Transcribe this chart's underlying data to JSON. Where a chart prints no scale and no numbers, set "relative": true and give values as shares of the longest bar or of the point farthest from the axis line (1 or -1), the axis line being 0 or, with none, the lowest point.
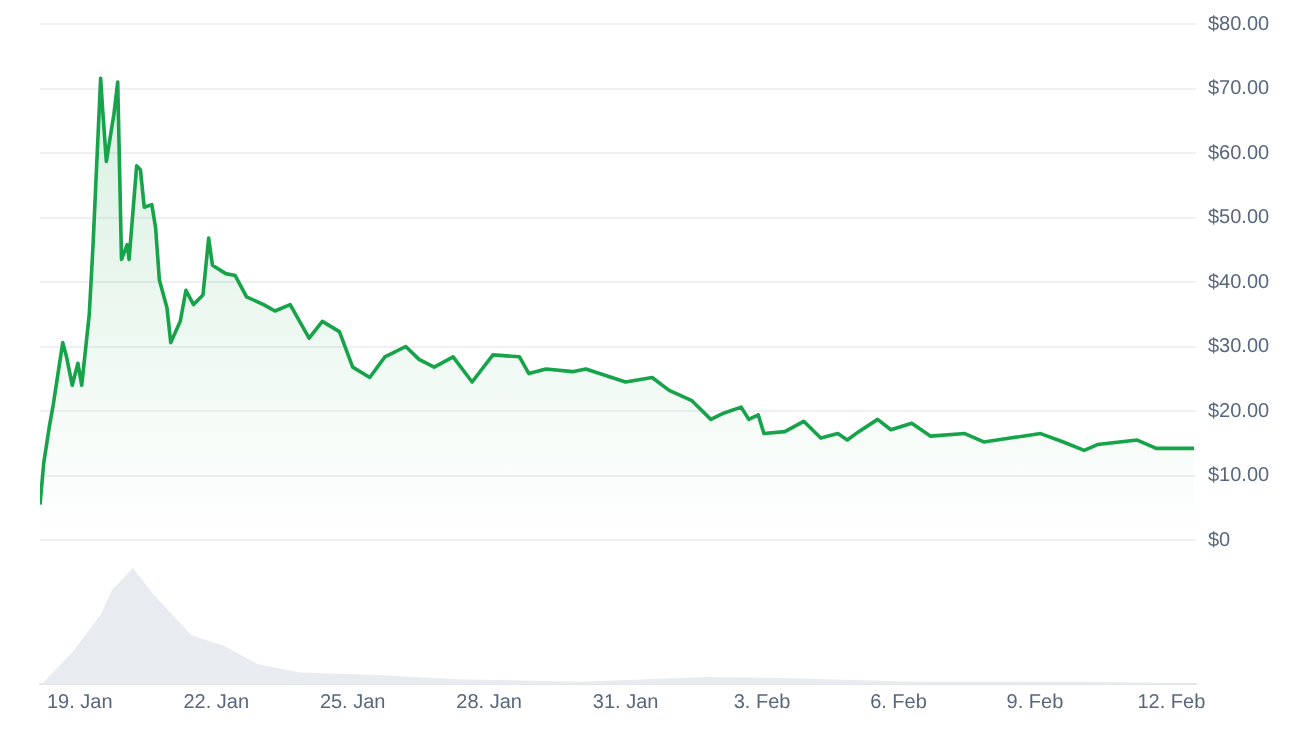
{
  "chart_data": [
    {
      "type": "area",
      "legend": false,
      "grid": "y",
      "tick_labels": "y",
      "xlim": [
        "--01-18T03:00",
        "--02-12T13:00"
      ],
      "ylim": [
        0,
        80
      ],
      "yticks": [
        {
          "value": 0,
          "label": "$0"
        },
        {
          "value": 10,
          "label": "$10.00"
        },
        {
          "value": 20,
          "label": "$20.00"
        },
        {
          "value": 30,
          "label": "$30.00"
        },
        {
          "value": 40,
          "label": "$40.00"
        },
        {
          "value": 50,
          "label": "$50.00"
        },
        {
          "value": 60,
          "label": "$60.00"
        },
        {
          "value": 70,
          "label": "$70.00"
        },
        {
          "value": 80,
          "label": "$80.00"
        }
      ],
      "series": [
        {
          "color": "#16a34a",
          "x": [
            "--01-18T03:00",
            "--01-18T05:00",
            "--01-18T08:00",
            "--01-18T10:00",
            "--01-18T15:00",
            "--01-18T17:00",
            "--01-18T20:00",
            "--01-18T23:00",
            "--01-19T01:00",
            "--01-19T05:00",
            "--01-19T07:00",
            "--01-19T11:00",
            "--01-19T12:00",
            "--01-19T14:00",
            "--01-19T18:00",
            "--01-19T20:00",
            "--01-19T22:00",
            "--01-20T01:00",
            "--01-20T02:00",
            "--01-20T06:00",
            "--01-20T08:00",
            "--01-20T10:00",
            "--01-20T14:00",
            "--01-20T16:00",
            "--01-20T18:00",
            "--01-20T22:00",
            "--01-21T00:00",
            "--01-21T05:00",
            "--01-21T08:00",
            "--01-21T12:00",
            "--01-21T17:00",
            "--01-21T20:00",
            "--01-21T22:00",
            "--01-22T05:00",
            "--01-22T10:00",
            "--01-22T16:00",
            "--01-23T01:00",
            "--01-23T07:00",
            "--01-23T15:00",
            "--01-24T01:00",
            "--01-24T08:00",
            "--01-24T17:00",
            "--01-25T00:00",
            "--01-25T09:00",
            "--01-25T17:00",
            "--01-26T04:00",
            "--01-26T11:00",
            "--01-26T19:00",
            "--01-27T05:00",
            "--01-27T15:00",
            "--01-28T02:00",
            "--01-28T16:00",
            "--01-28T21:00",
            "--01-29T06:00",
            "--01-29T20:00",
            "--01-30T03:00",
            "--01-31T00:00",
            "--01-31T14:00",
            "--01-31T23:00",
            "--02-01T11:00",
            "--02-01T21:00",
            "--02-02T04:00",
            "--02-02T13:00",
            "--02-02T17:00",
            "--02-02T22:00",
            "--02-03T01:00",
            "--02-03T12:00",
            "--02-03T22:00",
            "--02-04T07:00",
            "--02-04T16:00",
            "--02-04T21:00",
            "--02-05T03:00",
            "--02-05T13:00",
            "--02-05T20:00",
            "--02-06T07:00",
            "--02-06T17:00",
            "--02-07T11:00",
            "--02-07T21:00",
            "--02-08T11:00",
            "--02-09T03:00",
            "--02-09T15:00",
            "--02-10T02:00",
            "--02-10T09:00",
            "--02-11T06:00",
            "--02-11T16:00",
            "--02-12T12:00"
          ],
          "values": [
            5.5,
            12,
            17.7,
            21,
            30.6,
            28.4,
            24,
            27.4,
            24,
            35,
            45.8,
            71.6,
            67,
            58.7,
            66,
            71,
            43.5,
            45.8,
            43.5,
            58,
            57.4,
            51.6,
            52,
            48.4,
            40.3,
            36,
            30.6,
            33.9,
            38.7,
            36.5,
            38,
            46.8,
            42.6,
            41.3,
            41,
            37.7,
            36.5,
            35.5,
            36.5,
            31.3,
            33.9,
            32.3,
            26.8,
            25.2,
            28.4,
            30,
            28,
            26.8,
            28.4,
            24.5,
            28.7,
            28.4,
            25.8,
            26.5,
            26.1,
            26.5,
            24.5,
            25.2,
            23.2,
            21.6,
            18.7,
            19.7,
            20.6,
            18.7,
            19.4,
            16.5,
            16.8,
            18.4,
            15.8,
            16.5,
            15.5,
            16.8,
            18.7,
            17.1,
            18.1,
            16.1,
            16.5,
            15.2,
            15.8,
            16.5,
            15.2,
            13.9,
            14.8,
            15.5,
            14.2,
            14.2
          ]
        }
      ]
    },
    {
      "type": "area",
      "relative": true,
      "legend": false,
      "grid": false,
      "tick_labels": "x",
      "xlim": [
        "--01-18T03:00",
        "--02-12T13:00"
      ],
      "xticks": [
        {
          "value": "--01-19",
          "label": "19. Jan"
        },
        {
          "value": "--01-22",
          "label": "22. Jan"
        },
        {
          "value": "--01-25",
          "label": "25. Jan"
        },
        {
          "value": "--01-28",
          "label": "28. Jan"
        },
        {
          "value": "--01-31",
          "label": "31. Jan"
        },
        {
          "value": "--02-03",
          "label": "3. Feb"
        },
        {
          "value": "--02-06",
          "label": "6. Feb"
        },
        {
          "value": "--02-09",
          "label": "9. Feb"
        },
        {
          "value": "--02-12",
          "label": "12. Feb"
        }
      ],
      "series": [
        {
          "color": "#e8ebf0",
          "x": [
            "--01-18T04:00",
            "--01-18T21:00",
            "--01-19T11:00",
            "--01-19T17:00",
            "--01-20T04:00",
            "--01-20T15:00",
            "--01-21T11:00",
            "--01-22T04:00",
            "--01-22T22:00",
            "--01-23T20:00",
            "--01-25T11:00",
            "--01-27T07:00",
            "--01-30T01:00",
            "--02-01T18:00",
            "--02-03T15:00",
            "--02-06T08:00",
            "--02-10T00:00",
            "--02-11T20:00"
          ],
          "values": [
            0,
            0.29,
            0.6,
            0.81,
            1,
            0.77,
            0.42,
            0.33,
            0.17,
            0.1,
            0.08,
            0.04,
            0.02,
            0.06,
            0.05,
            0.02,
            0.02,
            0.01
          ]
        }
      ]
    }
  ]
}
